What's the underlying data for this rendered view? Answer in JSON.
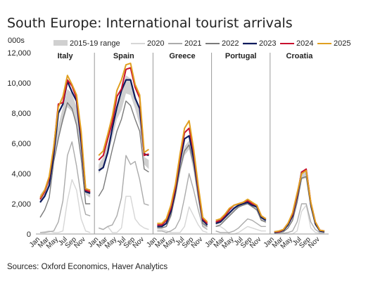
{
  "chart_data": {
    "type": "line",
    "title": "South Europe: International tourist arrivals",
    "ylabel": "000s",
    "ylim": [
      0,
      12000
    ],
    "yticks": [
      0,
      2000,
      4000,
      6000,
      8000,
      10000,
      12000
    ],
    "ytick_labels": [
      "0",
      "2,000",
      "4,000",
      "6,000",
      "8,000",
      "10,000",
      "12,000"
    ],
    "months": [
      "Jan",
      "Feb",
      "Mar",
      "Apr",
      "May",
      "Jun",
      "Jul",
      "Aug",
      "Sep",
      "Oct",
      "Nov",
      "Dec"
    ],
    "xtick_labels": [
      "Jan",
      "Mar",
      "May",
      "Jul",
      "Sep",
      "Nov"
    ],
    "legend_position": "top",
    "grid": false,
    "range_label": "2015-19 range",
    "range_color": "#d0d0d0",
    "series_styles": [
      {
        "name": "2020",
        "color": "#d6d6d6",
        "width": 1.4
      },
      {
        "name": "2021",
        "color": "#ababab",
        "width": 1.4
      },
      {
        "name": "2022",
        "color": "#7a7a7a",
        "width": 1.4
      },
      {
        "name": "2023",
        "color": "#0d1a5c",
        "width": 2.2
      },
      {
        "name": "2024",
        "color": "#c8102e",
        "width": 2.0
      },
      {
        "name": "2025",
        "color": "#e0a020",
        "width": 2.0
      }
    ],
    "panels": [
      {
        "name": "Italy",
        "range_low": [
          2100,
          2600,
          3300,
          5000,
          6300,
          7400,
          8400,
          8100,
          7300,
          5300,
          2600,
          2400
        ],
        "range_high": [
          2600,
          3000,
          3900,
          5900,
          7200,
          8400,
          9600,
          9300,
          8400,
          6200,
          3000,
          2800
        ],
        "series": [
          {
            "name": "2020",
            "values": [
              100,
              150,
              200,
              100,
              100,
              200,
              2200,
              3600,
              2900,
              1000,
              200,
              100
            ]
          },
          {
            "name": "2021",
            "values": [
              100,
              100,
              150,
              200,
              800,
              2200,
              5200,
              6100,
              4500,
              2500,
              1300,
              1200
            ]
          },
          {
            "name": "2022",
            "values": [
              1100,
              1600,
              2400,
              4800,
              6300,
              7600,
              8700,
              8300,
              7200,
              5000,
              2000,
              2000
            ]
          },
          {
            "name": "2023",
            "values": [
              2100,
              2500,
              3200,
              5300,
              8000,
              8600,
              10100,
              9400,
              8800,
              6100,
              2800,
              2700
            ]
          },
          {
            "name": "2024",
            "values": [
              2300,
              2800,
              3700,
              5700,
              8600,
              8700,
              10200,
              9800,
              9000,
              6600,
              2900,
              2800
            ]
          },
          {
            "name": "2025",
            "values": [
              2400,
              2900,
              3800,
              5800,
              8400,
              9100,
              10500,
              9900,
              9200,
              6800,
              3000,
              2900
            ]
          }
        ]
      },
      {
        "name": "Spain",
        "range_low": [
          4000,
          4400,
          5200,
          6300,
          7600,
          8200,
          9300,
          9200,
          8300,
          7200,
          4600,
          4300
        ],
        "range_high": [
          4600,
          5100,
          6000,
          7100,
          8500,
          9300,
          10500,
          10300,
          9300,
          8100,
          5100,
          4900
        ],
        "series": [
          {
            "name": "2020",
            "values": [
              400,
              300,
              500,
              100,
              100,
              400,
              2500,
              2500,
              1000,
              600,
              400,
              300
            ]
          },
          {
            "name": "2021",
            "values": [
              400,
              300,
              500,
              600,
              1200,
              2400,
              5200,
              4600,
              4800,
              3600,
              2000,
              1900
            ]
          },
          {
            "name": "2022",
            "values": [
              2500,
              3000,
              4300,
              5600,
              6800,
              7600,
              8800,
              8500,
              7600,
              6800,
              4300,
              4100
            ]
          },
          {
            "name": "2023",
            "values": [
              4200,
              4400,
              5400,
              7000,
              8400,
              9500,
              10200,
              10200,
              9000,
              8300,
              5300,
              5200
            ]
          },
          {
            "name": "2024",
            "values": [
              4900,
              5200,
              6300,
              7400,
              9100,
              9600,
              10900,
              11000,
              9700,
              9000,
              5200,
              5300
            ]
          },
          {
            "name": "2025",
            "values": [
              5200,
              5500,
              6600,
              7800,
              9500,
              10200,
              11200,
              11300,
              9900,
              9200,
              5400,
              5600
            ]
          }
        ]
      },
      {
        "name": "Greece",
        "range_low": [
          400,
          450,
          600,
          1200,
          2400,
          4000,
          5200,
          5600,
          4100,
          2100,
          500,
          400
        ],
        "range_high": [
          600,
          650,
          800,
          1600,
          3000,
          4700,
          5800,
          6200,
          4800,
          2600,
          800,
          600
        ],
        "series": [
          {
            "name": "2020",
            "values": [
              300,
              300,
              200,
              100,
              100,
              100,
              500,
              1800,
              1200,
              600,
              200,
              100
            ]
          },
          {
            "name": "2021",
            "values": [
              200,
              200,
              100,
              200,
              400,
              1000,
              2400,
              4000,
              2900,
              1600,
              500,
              300
            ]
          },
          {
            "name": "2022",
            "values": [
              400,
              400,
              500,
              1200,
              2600,
              4300,
              5500,
              5900,
              4600,
              2500,
              700,
              500
            ]
          },
          {
            "name": "2023",
            "values": [
              500,
              500,
              700,
              1500,
              2900,
              4800,
              6300,
              6500,
              5000,
              2900,
              900,
              600
            ]
          },
          {
            "name": "2024",
            "values": [
              600,
              600,
              900,
              1700,
              3100,
              5100,
              6700,
              7000,
              5400,
              3000,
              1000,
              700
            ]
          },
          {
            "name": "2025",
            "values": [
              700,
              700,
              1000,
              1900,
              3300,
              5300,
              7000,
              7500,
              5600,
              3200,
              1100,
              800
            ]
          }
        ]
      },
      {
        "name": "Portugal",
        "range_low": [
          600,
          700,
          900,
          1200,
          1500,
          1700,
          1900,
          2000,
          1800,
          1500,
          900,
          700
        ],
        "range_high": [
          800,
          900,
          1100,
          1500,
          1800,
          2000,
          2100,
          2200,
          2000,
          1700,
          1100,
          900
        ],
        "series": [
          {
            "name": "2020",
            "values": [
              500,
              500,
              300,
              0,
              0,
              100,
              300,
              500,
              400,
              300,
              200,
              200
            ]
          },
          {
            "name": "2021",
            "values": [
              200,
              100,
              100,
              100,
              200,
              400,
              700,
              1000,
              900,
              700,
              500,
              500
            ]
          },
          {
            "name": "2022",
            "values": [
              500,
              600,
              900,
              1200,
              1500,
              1800,
              1900,
              2000,
              1800,
              1600,
              900,
              800
            ]
          },
          {
            "name": "2023",
            "values": [
              700,
              800,
              1100,
              1400,
              1700,
              1900,
              2000,
              2100,
              1900,
              1800,
              1100,
              900
            ]
          },
          {
            "name": "2024",
            "values": [
              800,
              900,
              1200,
              1600,
              1900,
              2000,
              2100,
              2200,
              2000,
              1900,
              1200,
              1000
            ]
          },
          {
            "name": "2025",
            "values": [
              900,
              1000,
              1300,
              1700,
              1900,
              2000,
              2100,
              2300,
              2100,
              1900,
              1200,
              1000
            ]
          }
        ]
      },
      {
        "name": "Croatia",
        "range_low": [
          100,
          100,
          200,
          500,
          1000,
          2200,
          3600,
          3700,
          1800,
          600,
          150,
          100
        ],
        "range_high": [
          150,
          150,
          300,
          700,
          1300,
          2600,
          4000,
          4100,
          2100,
          800,
          200,
          150
        ],
        "series": [
          {
            "name": "2020",
            "values": [
              50,
              50,
              50,
              0,
              0,
              200,
              1500,
              1900,
              400,
              100,
              50,
              50
            ]
          },
          {
            "name": "2021",
            "values": [
              50,
              50,
              50,
              100,
              200,
              800,
              2000,
              2000,
              800,
              300,
              100,
              100
            ]
          },
          {
            "name": "2022",
            "values": [
              100,
              100,
              150,
              400,
              900,
              2100,
              3700,
              3800,
              1800,
              600,
              200,
              150
            ]
          },
          {
            "name": "2023",
            "values": [
              100,
              150,
              250,
              600,
              1200,
              2500,
              4100,
              4200,
              2000,
              700,
              200,
              150
            ]
          },
          {
            "name": "2024",
            "values": [
              150,
              150,
              300,
              700,
              1300,
              2600,
              4100,
              4300,
              2100,
              800,
              250,
              200
            ]
          },
          {
            "name": "2025",
            "values": [
              150,
              200,
              300,
              700,
              1400,
              2700,
              4000,
              4200,
              2100,
              800,
              250,
              200
            ]
          }
        ]
      }
    ]
  },
  "source": "Sources: Oxford Economics, Haver Analytics"
}
